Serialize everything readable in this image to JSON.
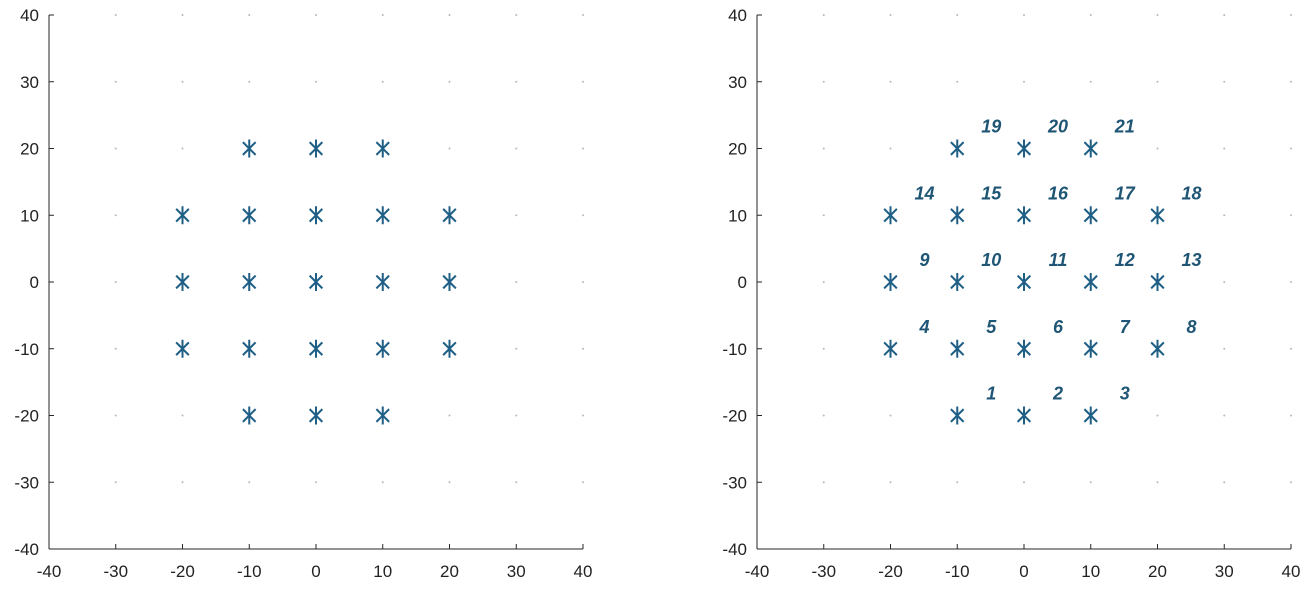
{
  "chart_data": [
    {
      "type": "scatter",
      "marker": "asterisk",
      "color": "#1f5f86",
      "grid": "dotted",
      "xlim": [
        -40,
        40
      ],
      "ylim": [
        -40,
        40
      ],
      "xticks": [
        -40,
        -30,
        -20,
        -10,
        0,
        10,
        20,
        30,
        40
      ],
      "yticks": [
        -40,
        -30,
        -20,
        -10,
        0,
        10,
        20,
        30,
        40
      ],
      "points": [
        {
          "x": -10,
          "y": -20
        },
        {
          "x": 0,
          "y": -20
        },
        {
          "x": 10,
          "y": -20
        },
        {
          "x": -20,
          "y": -10
        },
        {
          "x": -10,
          "y": -10
        },
        {
          "x": 0,
          "y": -10
        },
        {
          "x": 10,
          "y": -10
        },
        {
          "x": 20,
          "y": -10
        },
        {
          "x": -20,
          "y": 0
        },
        {
          "x": -10,
          "y": 0
        },
        {
          "x": 0,
          "y": 0
        },
        {
          "x": 10,
          "y": 0
        },
        {
          "x": 20,
          "y": 0
        },
        {
          "x": -20,
          "y": 10
        },
        {
          "x": -10,
          "y": 10
        },
        {
          "x": 0,
          "y": 10
        },
        {
          "x": 10,
          "y": 10
        },
        {
          "x": 20,
          "y": 10
        },
        {
          "x": -10,
          "y": 20
        },
        {
          "x": 0,
          "y": 20
        },
        {
          "x": 10,
          "y": 20
        }
      ]
    },
    {
      "type": "scatter",
      "marker": "asterisk",
      "color": "#1f5f86",
      "label_color": "#1f5675",
      "grid": "dotted",
      "xlim": [
        -40,
        40
      ],
      "ylim": [
        -40,
        40
      ],
      "xticks": [
        -40,
        -30,
        -20,
        -10,
        0,
        10,
        20,
        30,
        40
      ],
      "yticks": [
        -40,
        -30,
        -20,
        -10,
        0,
        10,
        20,
        30,
        40
      ],
      "points": [
        {
          "x": -10,
          "y": -20,
          "label": "1"
        },
        {
          "x": 0,
          "y": -20,
          "label": "2"
        },
        {
          "x": 10,
          "y": -20,
          "label": "3"
        },
        {
          "x": -20,
          "y": -10,
          "label": "4"
        },
        {
          "x": -10,
          "y": -10,
          "label": "5"
        },
        {
          "x": 0,
          "y": -10,
          "label": "6"
        },
        {
          "x": 10,
          "y": -10,
          "label": "7"
        },
        {
          "x": 20,
          "y": -10,
          "label": "8"
        },
        {
          "x": -20,
          "y": 0,
          "label": "9"
        },
        {
          "x": -10,
          "y": 0,
          "label": "10"
        },
        {
          "x": 0,
          "y": 0,
          "label": "11"
        },
        {
          "x": 10,
          "y": 0,
          "label": "12"
        },
        {
          "x": 20,
          "y": 0,
          "label": "13"
        },
        {
          "x": -20,
          "y": 10,
          "label": "14"
        },
        {
          "x": -10,
          "y": 10,
          "label": "15"
        },
        {
          "x": 0,
          "y": 10,
          "label": "16"
        },
        {
          "x": 10,
          "y": 10,
          "label": "17"
        },
        {
          "x": 20,
          "y": 10,
          "label": "18"
        },
        {
          "x": -10,
          "y": 20,
          "label": "19"
        },
        {
          "x": 0,
          "y": 20,
          "label": "20"
        },
        {
          "x": 10,
          "y": 20,
          "label": "21"
        }
      ]
    }
  ]
}
